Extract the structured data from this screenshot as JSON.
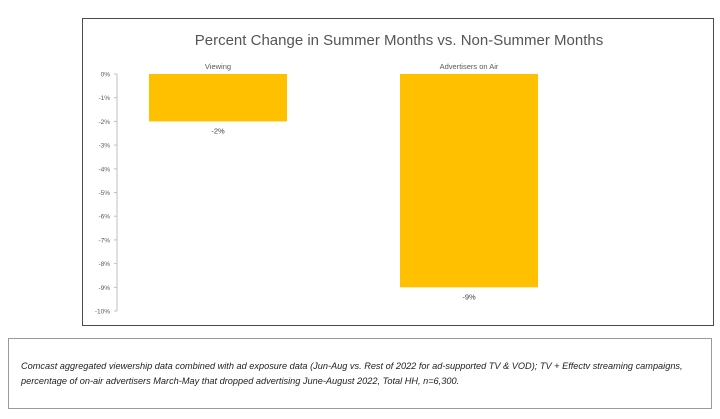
{
  "chart_data": {
    "type": "bar",
    "title": "Percent Change in Summer Months vs. Non-Summer Months",
    "categories": [
      "Viewing",
      "Advertisers on Air"
    ],
    "values": [
      -2,
      -9
    ],
    "data_labels": [
      "-2%",
      "-9%"
    ],
    "ylim": [
      -10,
      0
    ],
    "yticks": [
      "0%",
      "-1%",
      "-2%",
      "-3%",
      "-4%",
      "-5%",
      "-6%",
      "-7%",
      "-8%",
      "-9%",
      "-10%"
    ],
    "category_label_position": "top",
    "grid": false,
    "legend": "none",
    "bar_color": "#FFC000"
  },
  "caption": "Comcast aggregated viewership data combined with ad exposure data (Jun-Aug vs. Rest of 2022 for ad-supported TV & VOD); TV + Effectv streaming campaigns, percentage of on-air advertisers March-May that dropped advertising June-August 2022, Total HH, n=6,300."
}
